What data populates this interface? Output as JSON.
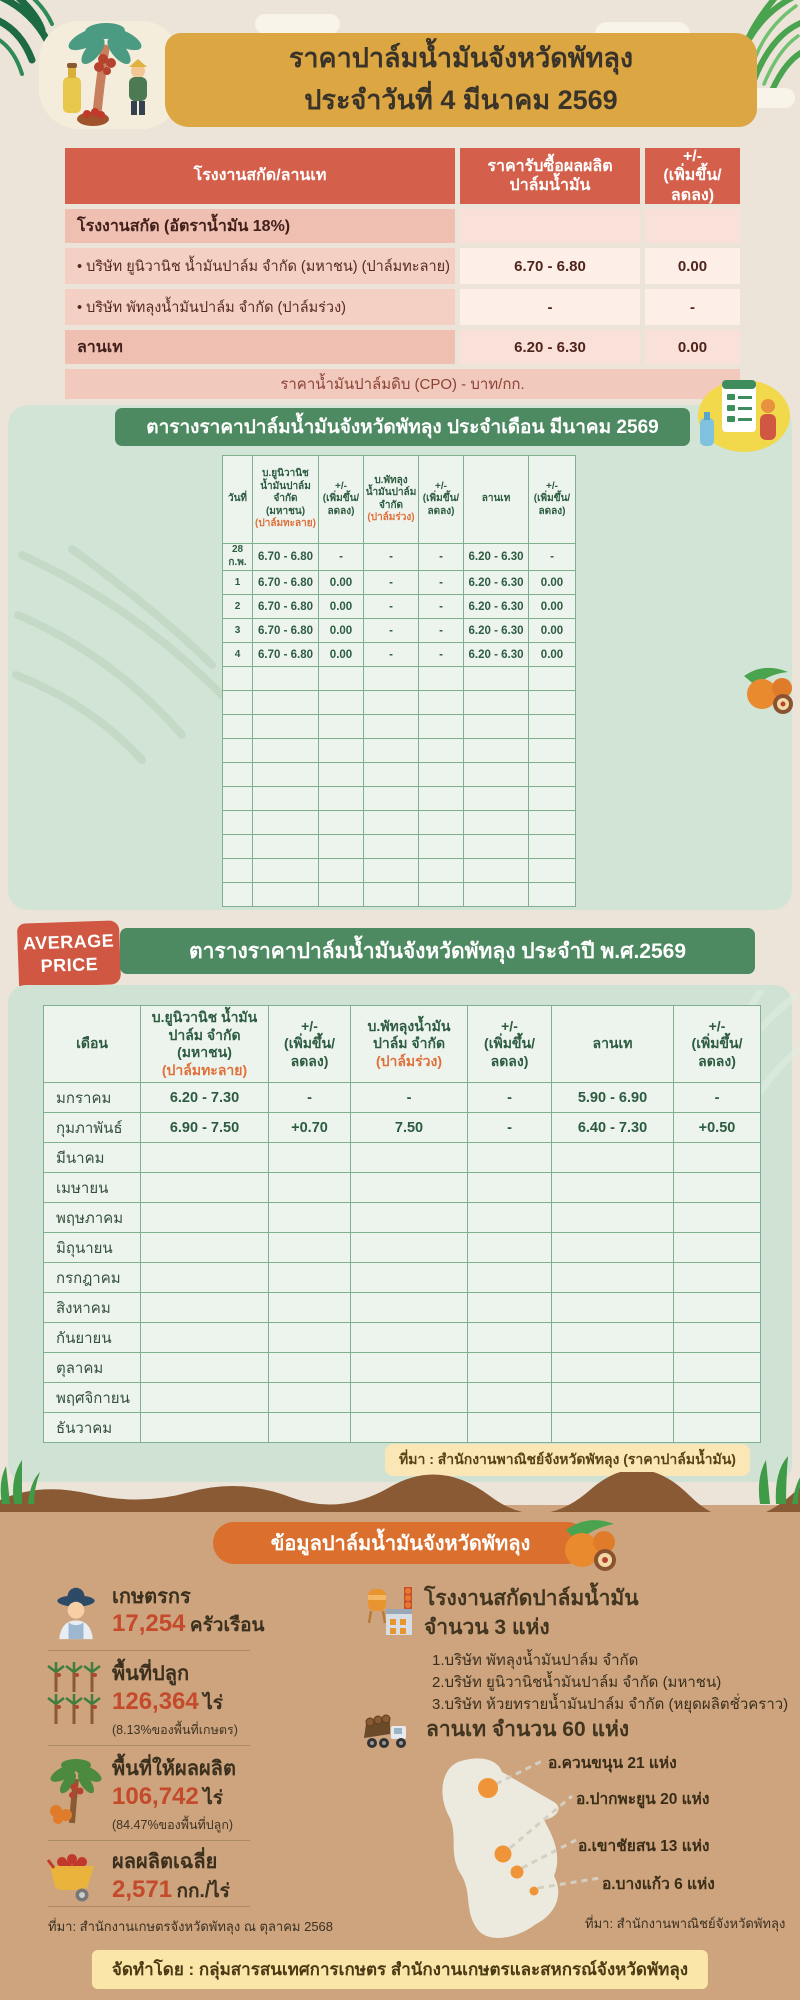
{
  "header": {
    "title_line1": "ราคาปาล์มน้ำมันจังหวัดพัทลุง",
    "title_line2": "ประจำวันที่ 4 มีนาคม 2569"
  },
  "daily": {
    "headers": [
      "โรงงานสกัด/ลานเท",
      "ราคารับซื้อผลผลิต\nปาล์มน้ำมัน",
      "+/-\n(เพิ่มขึ้น/ลดลง)"
    ],
    "rows": [
      {
        "label": "โรงงานสกัด (อัตราน้ำมัน 18%)",
        "price": "",
        "change": ""
      },
      {
        "label": "•  บริษัท ยูนิวานิช น้ำมันปาล์ม จำกัด (มหาชน) (ปาล์มทะลาย)",
        "price": "6.70 - 6.80",
        "change": "0.00"
      },
      {
        "label": "•  บริษัท พัทลุงน้ำมันปาล์ม จำกัด (ปาล์มร่วง)",
        "price": "-",
        "change": "-"
      },
      {
        "label": "ลานเท",
        "price": "6.20 - 6.30",
        "change": "0.00"
      }
    ],
    "footnote": "ราคาน้ำมันปาล์มดิบ (CPO) - บาท/กก."
  },
  "monthly": {
    "banner": "ตารางราคาปาล์มน้ำมันจังหวัดพัทลุง ประจำเดือน มีนาคม 2569",
    "headers": [
      {
        "text": "วันที่"
      },
      {
        "text": "บ.ยูนิวานิช\nน้ำมันปาล์ม\nจำกัด (มหาชน)",
        "accent": "(ปาล์มทะลาย)"
      },
      {
        "text": "+/-\n(เพิ่มขึ้น/\nลดลง)"
      },
      {
        "text": "บ.พัทลุง\nน้ำมันปาล์ม\nจำกัด",
        "accent": "(ปาล์มร่วง)"
      },
      {
        "text": "+/-\n(เพิ่มขึ้น/\nลดลง)"
      },
      {
        "text": "ลานเท"
      },
      {
        "text": "+/-\n(เพิ่มขึ้น/\nลดลง)"
      }
    ],
    "rows": [
      [
        "28 ก.พ.",
        "6.70 - 6.80",
        "-",
        "-",
        "-",
        "6.20 - 6.30",
        "-"
      ],
      [
        "1",
        "6.70 - 6.80",
        "0.00",
        "-",
        "-",
        "6.20 - 6.30",
        "0.00"
      ],
      [
        "2",
        "6.70 - 6.80",
        "0.00",
        "-",
        "-",
        "6.20 - 6.30",
        "0.00"
      ],
      [
        "3",
        "6.70 - 6.80",
        "0.00",
        "-",
        "-",
        "6.20 - 6.30",
        "0.00"
      ],
      [
        "4",
        "6.70 - 6.80",
        "0.00",
        "-",
        "-",
        "6.20 - 6.30",
        "0.00"
      ],
      [
        "",
        "",
        "",
        "",
        "",
        "",
        ""
      ],
      [
        "",
        "",
        "",
        "",
        "",
        "",
        ""
      ],
      [
        "",
        "",
        "",
        "",
        "",
        "",
        ""
      ],
      [
        "",
        "",
        "",
        "",
        "",
        "",
        ""
      ],
      [
        "",
        "",
        "",
        "",
        "",
        "",
        ""
      ],
      [
        "",
        "",
        "",
        "",
        "",
        "",
        ""
      ],
      [
        "",
        "",
        "",
        "",
        "",
        "",
        ""
      ],
      [
        "",
        "",
        "",
        "",
        "",
        "",
        ""
      ],
      [
        "",
        "",
        "",
        "",
        "",
        "",
        ""
      ],
      [
        "",
        "",
        "",
        "",
        "",
        "",
        ""
      ]
    ]
  },
  "yearly": {
    "badge_line1": "AVERAGE",
    "badge_line2": "PRICE",
    "banner": "ตารางราคาปาล์มน้ำมันจังหวัดพัทลุง ประจำปี พ.ศ.2569",
    "headers": [
      {
        "text": "เดือน"
      },
      {
        "text": "บ.ยูนิวานิช น้ำมัน\nปาล์ม จำกัด\n(มหาชน)",
        "accent": "(ปาล์มทะลาย)"
      },
      {
        "text": "+/-\n(เพิ่มขึ้น/\nลดลง)"
      },
      {
        "text": "บ.พัทลุงน้ำมัน\nปาล์ม จำกัด",
        "accent": "(ปาล์มร่วง)"
      },
      {
        "text": "+/-\n(เพิ่มขึ้น/\nลดลง)"
      },
      {
        "text": "ลานเท"
      },
      {
        "text": "+/-\n(เพิ่มขึ้น/\nลดลง)"
      }
    ],
    "rows": [
      [
        "มกราคม",
        "6.20 - 7.30",
        "-",
        "-",
        "-",
        "5.90 - 6.90",
        "-"
      ],
      [
        "กุมภาพันธ์",
        "6.90 - 7.50",
        "+0.70",
        "7.50",
        "-",
        "6.40 - 7.30",
        "+0.50"
      ],
      [
        "มีนาคม",
        "",
        "",
        "",
        "",
        "",
        ""
      ],
      [
        "เมษายน",
        "",
        "",
        "",
        "",
        "",
        ""
      ],
      [
        "พฤษภาคม",
        "",
        "",
        "",
        "",
        "",
        ""
      ],
      [
        "มิถุนายน",
        "",
        "",
        "",
        "",
        "",
        ""
      ],
      [
        "กรกฎาคม",
        "",
        "",
        "",
        "",
        "",
        ""
      ],
      [
        "สิงหาคม",
        "",
        "",
        "",
        "",
        "",
        ""
      ],
      [
        "กันยายน",
        "",
        "",
        "",
        "",
        "",
        ""
      ],
      [
        "ตุลาคม",
        "",
        "",
        "",
        "",
        "",
        ""
      ],
      [
        "พฤศจิกายน",
        "",
        "",
        "",
        "",
        "",
        ""
      ],
      [
        "ธันวาคม",
        "",
        "",
        "",
        "",
        "",
        ""
      ]
    ],
    "source": "ที่มา : สำนักงานพาณิชย์จังหวัดพัทลุง (ราคาปาล์มน้ำมัน)"
  },
  "info": {
    "banner": "ข้อมูลปาล์มน้ำมันจังหวัดพัทลุง",
    "stats": [
      {
        "title": "เกษตรกร",
        "value": "17,254",
        "unit": "ครัวเรือน",
        "note": ""
      },
      {
        "title": "พื้นที่ปลูก",
        "value": "126,364",
        "unit": "ไร่",
        "note": "(8.13%ของพื้นที่เกษตร)"
      },
      {
        "title": "พื้นที่ให้ผลผลิต",
        "value": "106,742",
        "unit": "ไร่",
        "note": "(84.47%ของพื้นที่ปลูก)"
      },
      {
        "title": "ผลผลิตเฉลี่ย",
        "value": "2,571",
        "unit": "กก./ไร่",
        "note": ""
      }
    ],
    "left_source": "ที่มา: สำนักงานเกษตรจังหวัดพัทลุง ณ ตุลาคม 2568",
    "factory": {
      "line1": "โรงงานสกัดปาล์มน้ำมัน",
      "line2": "จำนวน 3 แห่ง",
      "items": [
        "1.บริษัท พัทลุงน้ำมันปาล์ม จำกัด",
        "2.บริษัท ยูนิวานิชน้ำมันปาล์ม จำกัด (มหาชน)",
        "3.บริษัท ห้วยทรายน้ำมันปาล์ม จำกัด (หยุดผลิตชั่วคราว)"
      ]
    },
    "ramps": {
      "title": "ลานเท จำนวน 60 แห่ง",
      "districts": [
        {
          "label": "อ.ควนขนุน 21 แห่ง"
        },
        {
          "label": "อ.ปากพะยูน 20 แห่ง"
        },
        {
          "label": "อ.เขาชัยสน 13 แห่ง"
        },
        {
          "label": "อ.บางแก้ว 6 แห่ง"
        }
      ],
      "source": "ที่มา: สำนักงานพาณิชย์จังหวัดพัทลุง"
    },
    "credit": "จัดทำโดย : กลุ่มสารสนเทศการเกษตร สำนักงานเกษตรและสหกรณ์จังหวัดพัทลุง"
  },
  "colors": {
    "accent_red": "#d4604c",
    "accent_green": "#4e8a61",
    "accent_orange": "#da6f2e",
    "banner_gold": "#dca743",
    "stat_number": "#c44a2b"
  }
}
